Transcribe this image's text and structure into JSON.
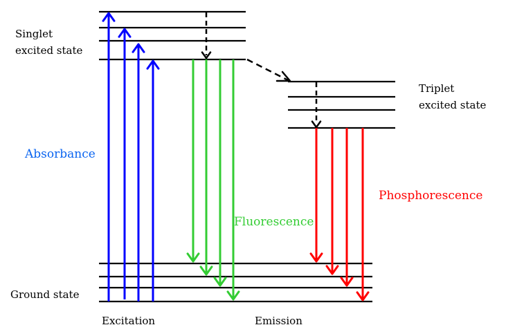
{
  "labels": {
    "singlet_line1": "Singlet",
    "singlet_line2": "excited state",
    "triplet_line1": "Triplet",
    "triplet_line2": "excited state",
    "absorbance": "Absorbance",
    "fluorescence": "Fluorescence",
    "phosphorescence": "Phosphorescence",
    "ground_state": "Ground state",
    "excitation": "Excitation",
    "emission": "Emission"
  },
  "colors": {
    "absorbance_arrow": "#0000ff",
    "absorbance_text": "#0a64f0",
    "fluorescence": "#33cc33",
    "phosphorescence": "#ff0000",
    "levels": "#000000",
    "nonradiative": "#000000"
  },
  "diagram": {
    "type": "Jablonski diagram",
    "singlet_levels": 4,
    "triplet_levels": 4,
    "ground_levels": 4,
    "absorbance_arrows": 4,
    "fluorescence_arrows": 4,
    "phosphorescence_arrows": 4,
    "nonradiative_transitions": [
      "vibrational relaxation (singlet)",
      "intersystem crossing",
      "vibrational relaxation (triplet)"
    ]
  }
}
